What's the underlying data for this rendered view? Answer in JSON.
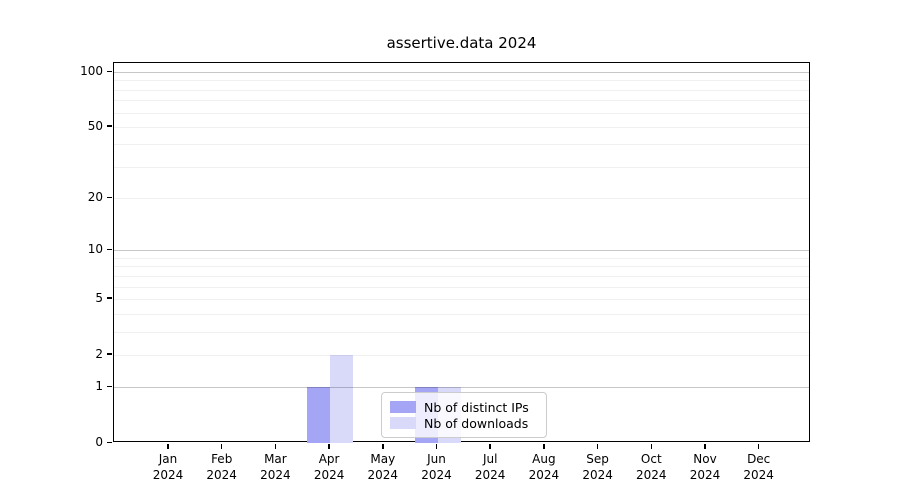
{
  "title": "assertive.data 2024",
  "chart_data": {
    "type": "bar",
    "title": "assertive.data 2024",
    "categories": [
      "Jan",
      "Feb",
      "Mar",
      "Apr",
      "May",
      "Jun",
      "Jul",
      "Aug",
      "Sep",
      "Oct",
      "Nov",
      "Dec"
    ],
    "year_label": "2024",
    "series": [
      {
        "name": "Nb of distinct IPs",
        "color": "#a5a5f5",
        "values": [
          0,
          0,
          0,
          1,
          0,
          1,
          0,
          0,
          0,
          0,
          0,
          0
        ]
      },
      {
        "name": "Nb of downloads",
        "color": "#d9d9f9",
        "values": [
          0,
          0,
          0,
          2,
          0,
          1,
          0,
          0,
          0,
          0,
          0,
          0
        ]
      }
    ],
    "xlabel": "",
    "ylabel": "",
    "y_axis": {
      "scale": "log1p",
      "tick_labels": [
        0,
        1,
        2,
        5,
        10,
        20,
        50,
        100
      ],
      "major_gridlines": [
        1,
        10,
        100
      ],
      "minor_gridlines": [
        2,
        3,
        4,
        5,
        6,
        7,
        8,
        9,
        20,
        30,
        40,
        50,
        60,
        70,
        80,
        90
      ],
      "ylim": [
        0,
        112
      ],
      "grid": true
    },
    "legend": {
      "position": "lower right of center, inside plot",
      "items": [
        {
          "label": "Nb of distinct IPs",
          "color": "#a5a5f5"
        },
        {
          "label": "Nb of downloads",
          "color": "#d9d9f9"
        }
      ]
    }
  }
}
